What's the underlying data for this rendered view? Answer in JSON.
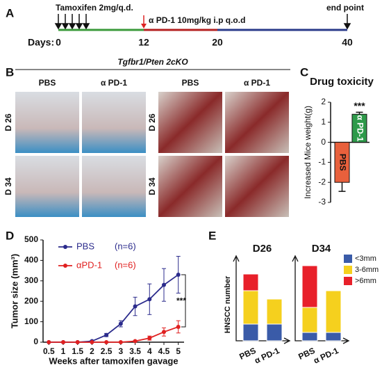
{
  "panel_a": {
    "label": "A",
    "tamoxifen": "Tamoxifen 2mg/q.d.",
    "treatment": "α PD-1 10mg/kg i.p q.o.d",
    "end": "end point",
    "days_label": "Days:",
    "days": [
      0,
      12,
      20,
      40
    ]
  },
  "panel_b": {
    "label": "B",
    "genotype": "Tgfbr1/Pten 2cKO",
    "columns": [
      "PBS",
      "α PD-1",
      "PBS",
      "α PD-1"
    ],
    "rows": [
      "D 26",
      "D 34",
      "D 26",
      "D 34"
    ]
  },
  "chart_data": [
    {
      "type": "bar",
      "panel": "C",
      "title": "Drug toxicity",
      "y_label": "Increased Mice weight(g)",
      "categories": [
        "PBS",
        "α PD-1"
      ],
      "values": [
        -2.0,
        1.4
      ],
      "errors": [
        0.45,
        0.1
      ],
      "colors": [
        "#e8603c",
        "#2e9a4a"
      ],
      "ylim": [
        -3,
        2
      ],
      "yticks": [
        -3,
        -2,
        -1,
        0,
        1,
        2
      ],
      "annotation": "***"
    },
    {
      "type": "line",
      "panel": "D",
      "y_label": "Tumor size (mm³)",
      "x_label": "Weeks after tamoxifen gavage",
      "x": [
        0.5,
        1,
        1.5,
        2,
        2.5,
        3,
        3.5,
        4,
        4.5,
        5
      ],
      "xlim": [
        0.3,
        5.2
      ],
      "xticks": [
        0.5,
        1,
        1.5,
        2,
        2.5,
        3,
        3.5,
        4,
        4.5,
        5
      ],
      "ylim": [
        0,
        500
      ],
      "yticks": [
        0,
        100,
        200,
        300,
        400,
        500
      ],
      "annotation": "***",
      "series": [
        {
          "name": "PBS",
          "n_label": "(n=6)",
          "color": "#2b2b8c",
          "values": [
            0,
            0,
            0,
            5,
            35,
            90,
            175,
            210,
            280,
            330
          ],
          "errors": [
            0,
            0,
            0,
            3,
            8,
            15,
            45,
            75,
            80,
            90
          ]
        },
        {
          "name": "αPD-1",
          "n_label": "(n=6)",
          "color": "#e02020",
          "values": [
            0,
            0,
            0,
            0,
            0,
            0,
            5,
            20,
            50,
            75
          ],
          "errors": [
            0,
            0,
            0,
            0,
            0,
            0,
            3,
            10,
            20,
            30
          ]
        }
      ]
    },
    {
      "type": "stacked-bar",
      "panel": "E",
      "title": "D26",
      "y_label": "HNSCC number",
      "categories": [
        "PBS",
        "α PD-1"
      ],
      "ylim": [
        0,
        10
      ],
      "series": [
        {
          "color": "#3a5ba8",
          "values": [
            2,
            2
          ]
        },
        {
          "color": "#f5d01e",
          "values": [
            4,
            3
          ]
        },
        {
          "color": "#e8202a",
          "values": [
            2,
            0
          ]
        }
      ]
    },
    {
      "type": "stacked-bar",
      "title": "D34",
      "categories": [
        "PBS",
        "α PD-1"
      ],
      "ylim": [
        0,
        10
      ],
      "legend": "right",
      "series": [
        {
          "name": "<3mm",
          "color": "#3a5ba8",
          "values": [
            1,
            1
          ]
        },
        {
          "name": "3-6mm",
          "color": "#f5d01e",
          "values": [
            3,
            5
          ]
        },
        {
          "name": ">6mm",
          "color": "#e8202a",
          "values": [
            5,
            0
          ]
        }
      ]
    }
  ]
}
